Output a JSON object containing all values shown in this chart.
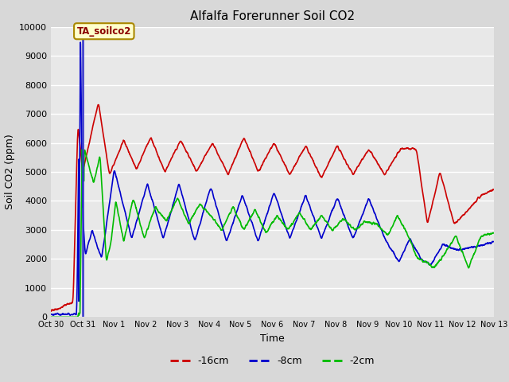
{
  "title": "Alfalfa Forerunner Soil CO2",
  "ylabel": "Soil CO2 (ppm)",
  "xlabel": "Time",
  "ylim": [
    0,
    10000
  ],
  "xlim": [
    0,
    14
  ],
  "xtick_labels": [
    "Oct 30",
    "Oct 31",
    "Nov 1",
    "Nov 2",
    "Nov 3",
    "Nov 4",
    "Nov 5",
    "Nov 6",
    "Nov 7",
    "Nov 8",
    "Nov 9",
    "Nov 10",
    "Nov 11",
    "Nov 12",
    "Nov 13"
  ],
  "xtick_positions": [
    0,
    1,
    2,
    3,
    4,
    5,
    6,
    7,
    8,
    9,
    10,
    11,
    12,
    13,
    14
  ],
  "legend_labels": [
    "-16cm",
    "-8cm",
    "-2cm"
  ],
  "legend_colors": [
    "#cc0000",
    "#0000cc",
    "#00bb00"
  ],
  "annotation_text": "TA_soilco2",
  "bg_color": "#d8d8d8",
  "plot_bg_color": "#e8e8e8",
  "grid_color": "#ffffff",
  "vertical_line_color": "#3333cc",
  "green_spike_color": "#00cc00",
  "title_fontsize": 11,
  "label_fontsize": 9,
  "tick_fontsize": 8,
  "red_knots_x": [
    0.0,
    0.7,
    0.85,
    1.0,
    1.5,
    1.85,
    2.3,
    2.7,
    3.15,
    3.6,
    4.1,
    4.6,
    5.1,
    5.6,
    6.1,
    6.55,
    7.05,
    7.55,
    8.05,
    8.55,
    9.05,
    9.55,
    10.05,
    10.55,
    11.05,
    11.55,
    11.9,
    12.3,
    12.75,
    13.2,
    13.6,
    14.0
  ],
  "red_knots_y": [
    200,
    500,
    6700,
    5000,
    7400,
    4900,
    6100,
    5100,
    6200,
    5000,
    6100,
    5000,
    6000,
    4900,
    6200,
    5000,
    6000,
    4900,
    5900,
    4800,
    5900,
    4900,
    5800,
    4900,
    5800,
    5800,
    3200,
    5000,
    3200,
    3700,
    4200,
    4400
  ],
  "blue_knots_x": [
    0.0,
    0.82,
    0.92,
    1.0,
    1.08,
    1.3,
    1.6,
    2.0,
    2.55,
    3.05,
    3.55,
    4.05,
    4.55,
    5.05,
    5.55,
    6.05,
    6.55,
    7.05,
    7.55,
    8.05,
    8.55,
    9.05,
    9.55,
    10.05,
    10.55,
    11.0,
    11.35,
    11.7,
    12.0,
    12.4,
    12.85,
    13.3,
    13.7,
    14.0
  ],
  "blue_knots_y": [
    100,
    100,
    9700,
    3700,
    2100,
    3000,
    2000,
    5100,
    2700,
    4600,
    2700,
    4600,
    2600,
    4500,
    2600,
    4200,
    2600,
    4300,
    2700,
    4200,
    2700,
    4100,
    2700,
    4100,
    2700,
    1900,
    2700,
    2000,
    1800,
    2500,
    2300,
    2400,
    2500,
    2600
  ],
  "green_knots_x": [
    0.0,
    0.85,
    0.95,
    1.05,
    1.35,
    1.55,
    1.75,
    1.9,
    2.05,
    2.3,
    2.6,
    2.95,
    3.3,
    3.65,
    4.0,
    4.35,
    4.7,
    5.05,
    5.4,
    5.75,
    6.1,
    6.45,
    6.8,
    7.15,
    7.5,
    7.85,
    8.2,
    8.55,
    8.9,
    9.25,
    9.6,
    9.95,
    10.3,
    10.65,
    10.95,
    11.3,
    11.6,
    11.85,
    12.1,
    12.4,
    12.8,
    13.2,
    13.6,
    14.0
  ],
  "green_knots_y": [
    0,
    0,
    200,
    5800,
    4600,
    5600,
    1900,
    2600,
    4000,
    2600,
    4100,
    2700,
    3800,
    3300,
    4100,
    3200,
    3900,
    3500,
    3000,
    3800,
    3000,
    3700,
    2900,
    3500,
    3000,
    3600,
    3000,
    3500,
    3000,
    3400,
    3000,
    3300,
    3200,
    2800,
    3500,
    2800,
    2000,
    1900,
    1700,
    2100,
    2800,
    1700,
    2800,
    2900
  ]
}
